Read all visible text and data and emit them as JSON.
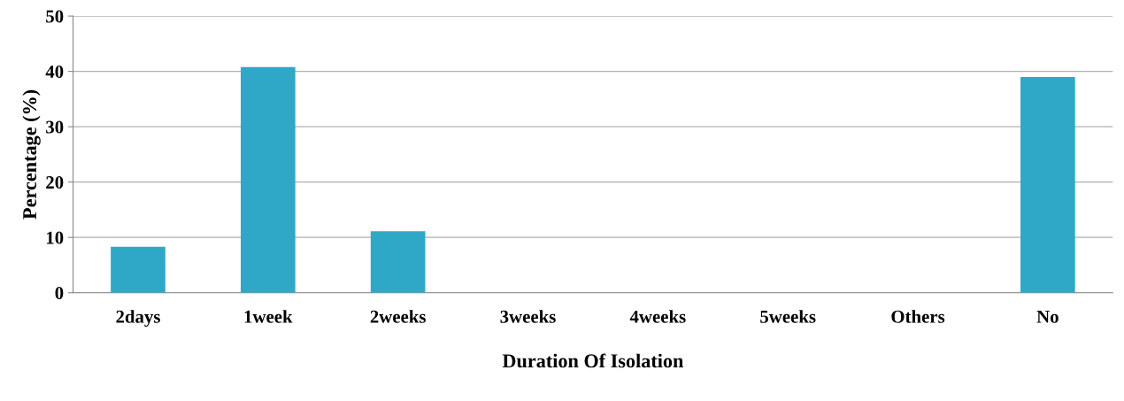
{
  "chart_data": {
    "type": "bar",
    "xlabel": "Duration Of Isolation",
    "ylabel": "Percentage (%)",
    "categories": [
      "2days",
      "1week",
      "2weeks",
      "3weeks",
      "4weeks",
      "5weeks",
      "Others",
      "No"
    ],
    "values": [
      8.3,
      40.8,
      11.1,
      0,
      0,
      0,
      0,
      39.0
    ],
    "color": "#2fa8c8",
    "ylim": [
      0,
      50
    ],
    "yticks": [
      0,
      10,
      20,
      30,
      40,
      50
    ],
    "grid": "y"
  }
}
